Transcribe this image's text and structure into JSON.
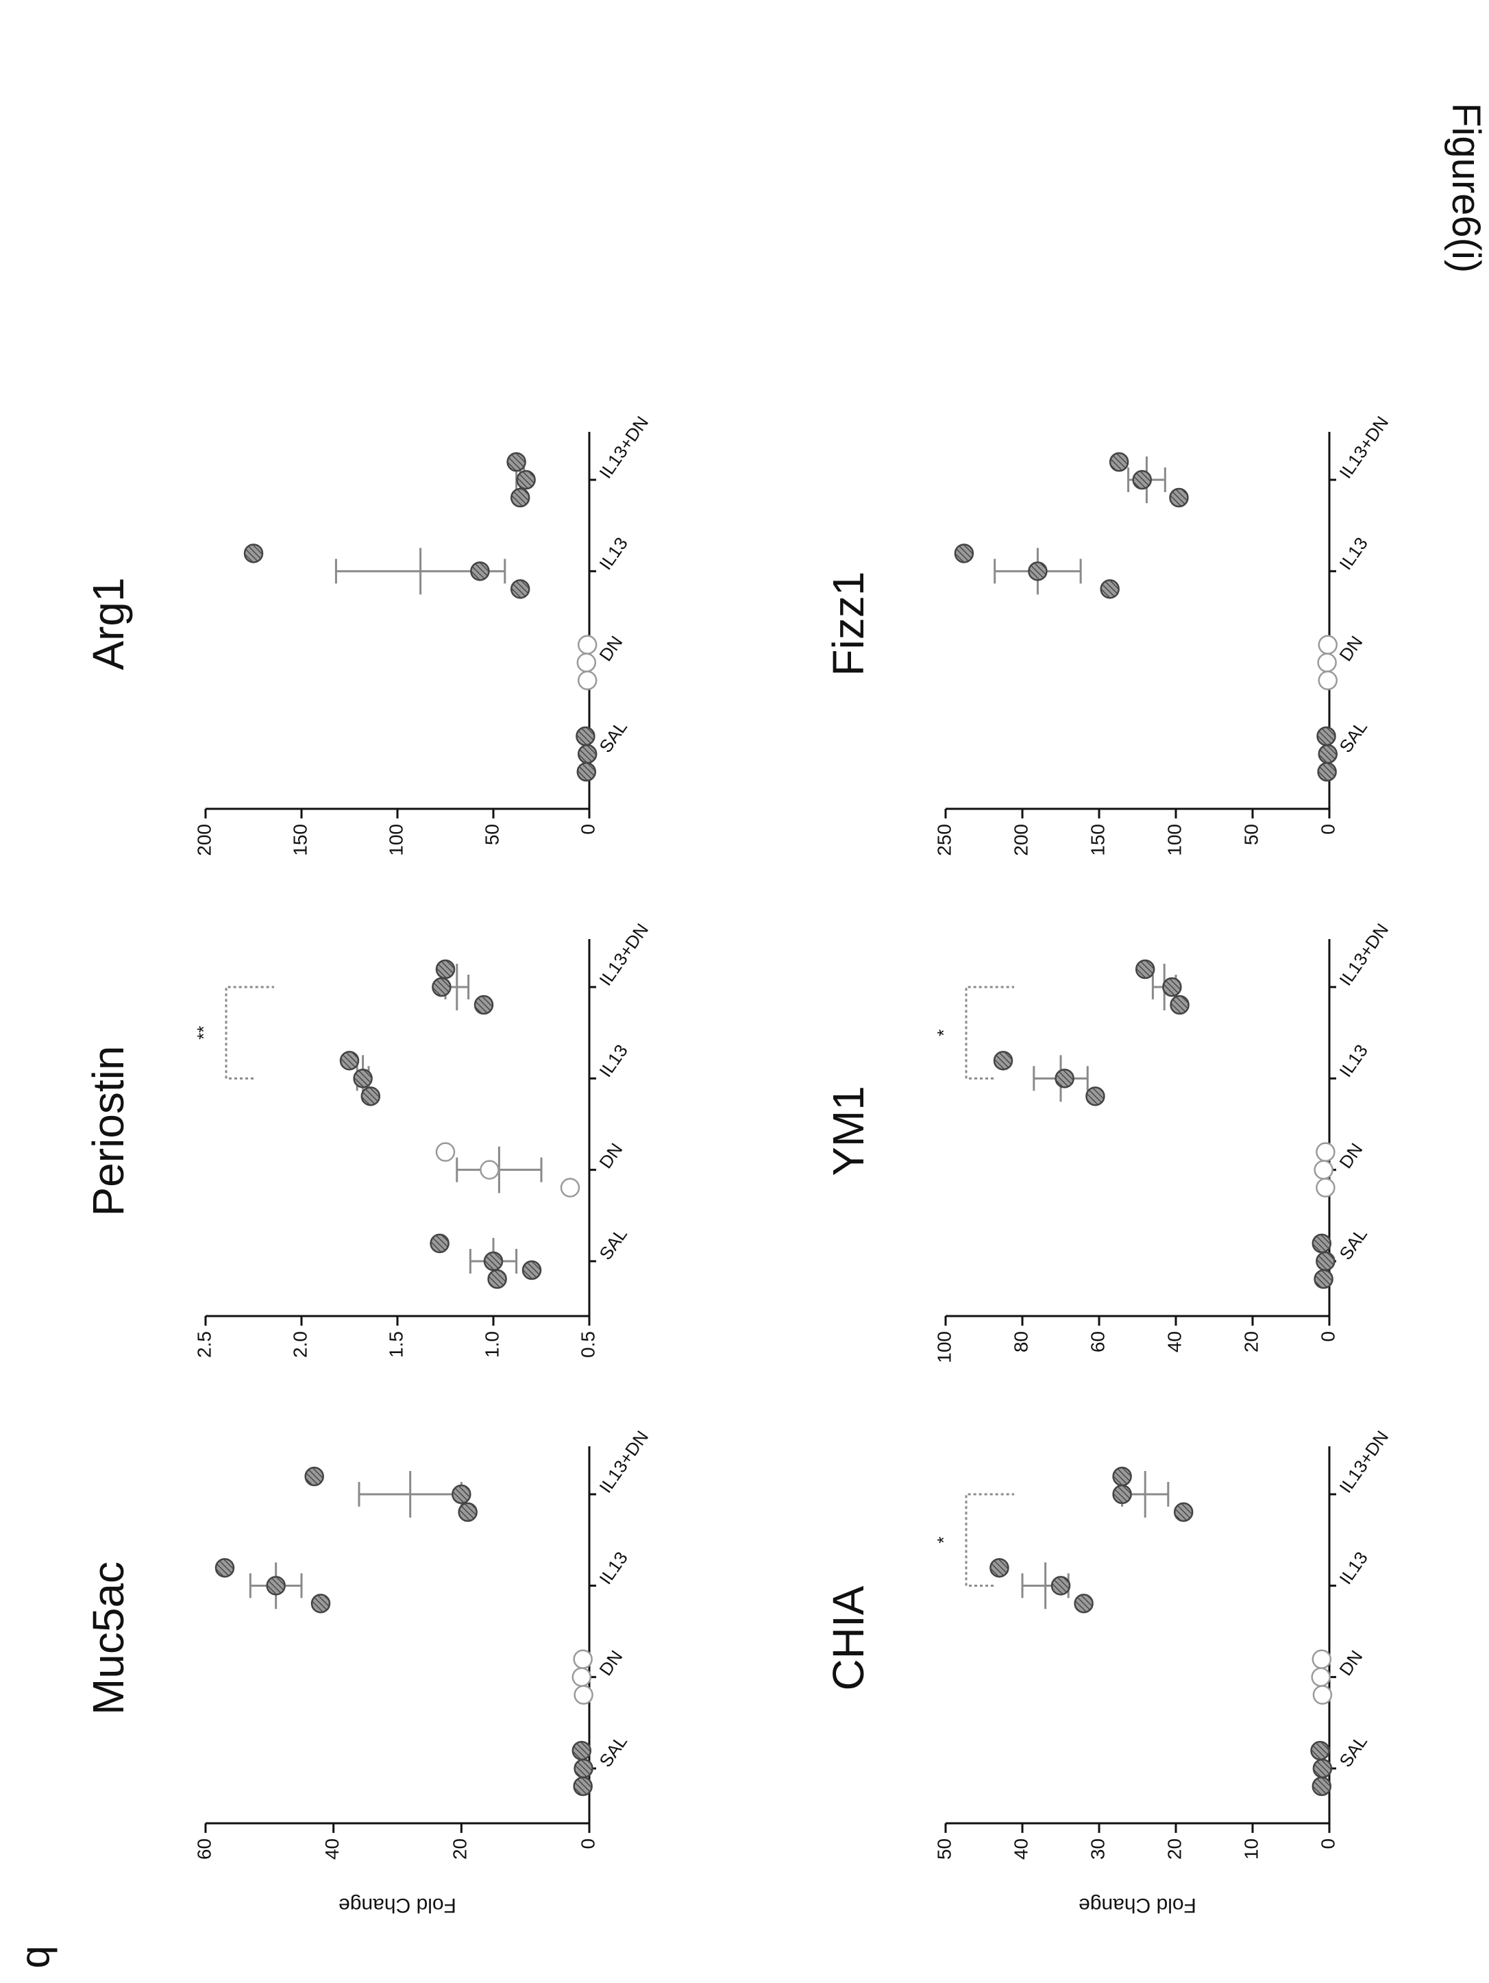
{
  "figure": {
    "label": "Figure6(i)",
    "panel_letter": "b"
  },
  "chart_data": [
    {
      "type": "scatter",
      "title": "Muc5ac",
      "ylabel": "Fold Change",
      "xlabel": "",
      "categories": [
        "SAL",
        "DN",
        "IL13",
        "IL13+DN"
      ],
      "ylim": [
        0,
        60
      ],
      "yticks": [
        0,
        20,
        40,
        60
      ],
      "yticklabels": [
        "0",
        "20",
        "40",
        "60"
      ],
      "series": [
        {
          "category": "SAL",
          "style": "hatched",
          "points": [
            1.2,
            0.9,
            1.0
          ],
          "mean": 1.0,
          "sd": 0.2
        },
        {
          "category": "DN",
          "style": "open",
          "points": [
            1.0,
            1.2,
            0.9
          ],
          "mean": 1.0,
          "sd": 0.2
        },
        {
          "category": "IL13",
          "style": "hatched",
          "points": [
            57,
            49,
            42
          ],
          "mean": 49,
          "sd": 4
        },
        {
          "category": "IL13+DN",
          "style": "hatched",
          "points": [
            43,
            20,
            19
          ],
          "mean": 28,
          "sd": 8
        }
      ],
      "significance": []
    },
    {
      "type": "scatter",
      "title": "Periostin",
      "ylabel": "",
      "xlabel": "",
      "categories": [
        "SAL",
        "DN",
        "IL13",
        "IL13+DN"
      ],
      "ylim": [
        0.5,
        2.5
      ],
      "yticks": [
        0.5,
        1.0,
        1.5,
        2.0,
        2.5
      ],
      "yticklabels": [
        "0.5",
        "1.0",
        "1.5",
        "2.0",
        "2.5"
      ],
      "series": [
        {
          "category": "SAL",
          "style": "hatched",
          "points": [
            1.28,
            1.0,
            0.98,
            0.8
          ],
          "mean": 1.0,
          "sd": 0.12
        },
        {
          "category": "DN",
          "style": "open",
          "points": [
            1.25,
            1.02,
            0.6
          ],
          "mean": 0.97,
          "sd": 0.22
        },
        {
          "category": "IL13",
          "style": "hatched",
          "points": [
            1.75,
            1.68,
            1.64
          ],
          "mean": 1.68,
          "sd": 0.03
        },
        {
          "category": "IL13+DN",
          "style": "hatched",
          "points": [
            1.25,
            1.27,
            1.05
          ],
          "mean": 1.19,
          "sd": 0.06
        }
      ],
      "significance": [
        {
          "from": "IL13",
          "to": "IL13+DN",
          "label": "**"
        }
      ]
    },
    {
      "type": "scatter",
      "title": "Arg1",
      "ylabel": "",
      "xlabel": "",
      "categories": [
        "SAL",
        "DN",
        "IL13",
        "IL13+DN"
      ],
      "ylim": [
        0,
        200
      ],
      "yticks": [
        0,
        50,
        100,
        150,
        200
      ],
      "yticklabels": [
        "0",
        "50",
        "100",
        "150",
        "200"
      ],
      "series": [
        {
          "category": "SAL",
          "style": "hatched",
          "points": [
            2,
            1,
            1.5
          ],
          "mean": 1.5,
          "sd": 0.5
        },
        {
          "category": "DN",
          "style": "open",
          "points": [
            1,
            1.5,
            1
          ],
          "mean": 1.2,
          "sd": 0.3
        },
        {
          "category": "IL13",
          "style": "hatched",
          "points": [
            175,
            57,
            36
          ],
          "mean": 88,
          "sd": 44
        },
        {
          "category": "IL13+DN",
          "style": "hatched",
          "points": [
            38,
            33,
            36
          ],
          "mean": 36,
          "sd": 2
        }
      ],
      "significance": []
    },
    {
      "type": "scatter",
      "title": "CHIA",
      "ylabel": "Fold Change",
      "xlabel": "",
      "categories": [
        "SAL",
        "DN",
        "IL13",
        "IL13+DN"
      ],
      "ylim": [
        0,
        50
      ],
      "yticks": [
        0,
        10,
        20,
        30,
        40,
        50
      ],
      "yticklabels": [
        "0",
        "10",
        "20",
        "30",
        "40",
        "50"
      ],
      "series": [
        {
          "category": "SAL",
          "style": "hatched",
          "points": [
            1.2,
            0.9,
            1.0
          ],
          "mean": 1.0,
          "sd": 0.2
        },
        {
          "category": "DN",
          "style": "open",
          "points": [
            1.0,
            1.1,
            0.9
          ],
          "mean": 1.0,
          "sd": 0.2
        },
        {
          "category": "IL13",
          "style": "hatched",
          "points": [
            43,
            35,
            32
          ],
          "mean": 37,
          "sd": 3
        },
        {
          "category": "IL13+DN",
          "style": "hatched",
          "points": [
            27,
            27,
            19
          ],
          "mean": 24,
          "sd": 3
        }
      ],
      "significance": [
        {
          "from": "IL13",
          "to": "IL13+DN",
          "label": "*"
        }
      ]
    },
    {
      "type": "scatter",
      "title": "YM1",
      "ylabel": "",
      "xlabel": "",
      "categories": [
        "SAL",
        "DN",
        "IL13",
        "IL13+DN"
      ],
      "ylim": [
        0,
        100
      ],
      "yticks": [
        0,
        20,
        40,
        60,
        80,
        100
      ],
      "yticklabels": [
        "0",
        "20",
        "40",
        "60",
        "80",
        "100"
      ],
      "series": [
        {
          "category": "SAL",
          "style": "hatched",
          "points": [
            2,
            1,
            1.5
          ],
          "mean": 1.5,
          "sd": 0.5
        },
        {
          "category": "DN",
          "style": "open",
          "points": [
            1,
            1.5,
            1
          ],
          "mean": 1.2,
          "sd": 0.3
        },
        {
          "category": "IL13",
          "style": "hatched",
          "points": [
            85,
            69,
            61
          ],
          "mean": 70,
          "sd": 7
        },
        {
          "category": "IL13+DN",
          "style": "hatched",
          "points": [
            48,
            41,
            39
          ],
          "mean": 43,
          "sd": 3
        }
      ],
      "significance": [
        {
          "from": "IL13",
          "to": "IL13+DN",
          "label": "*"
        }
      ]
    },
    {
      "type": "scatter",
      "title": "Fizz1",
      "ylabel": "",
      "xlabel": "",
      "categories": [
        "SAL",
        "DN",
        "IL13",
        "IL13+DN"
      ],
      "ylim": [
        0,
        250
      ],
      "yticks": [
        0,
        50,
        100,
        150,
        200,
        250
      ],
      "yticklabels": [
        "0",
        "50",
        "100",
        "150",
        "200",
        "250"
      ],
      "series": [
        {
          "category": "SAL",
          "style": "hatched",
          "points": [
            2,
            1,
            1.5
          ],
          "mean": 1.5,
          "sd": 0.5
        },
        {
          "category": "DN",
          "style": "open",
          "points": [
            1,
            1.5,
            1
          ],
          "mean": 1.2,
          "sd": 0.3
        },
        {
          "category": "IL13",
          "style": "hatched",
          "points": [
            238,
            190,
            143
          ],
          "mean": 190,
          "sd": 28
        },
        {
          "category": "IL13+DN",
          "style": "hatched",
          "points": [
            137,
            122,
            98
          ],
          "mean": 119,
          "sd": 12
        }
      ],
      "significance": []
    }
  ]
}
